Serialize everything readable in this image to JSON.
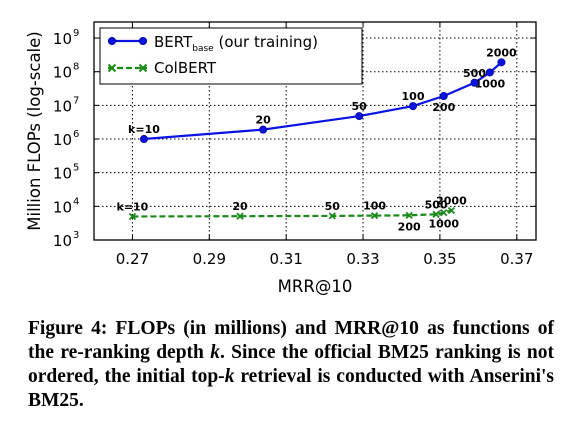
{
  "chart_data": {
    "type": "line",
    "xlabel": "MRR@10",
    "ylabel": "Million FLOPs (log-scale)",
    "xlim": [
      0.26,
      0.375
    ],
    "ylim": [
      1000,
      3000000000
    ],
    "y_scale": "log",
    "grid": true,
    "legend_placement": "top-left",
    "x_ticks": [
      0.27,
      0.29,
      0.31,
      0.33,
      0.35,
      0.37
    ],
    "x_tick_labels": [
      "0.27",
      "0.29",
      "0.31",
      "0.33",
      "0.35",
      "0.37"
    ],
    "y_ticks": [
      1000,
      10000,
      100000,
      1000000,
      10000000,
      100000000,
      1000000000
    ],
    "y_tick_labels": [
      {
        "base": "10",
        "exp": "3"
      },
      {
        "base": "10",
        "exp": "4"
      },
      {
        "base": "10",
        "exp": "5"
      },
      {
        "base": "10",
        "exp": "6"
      },
      {
        "base": "10",
        "exp": "7"
      },
      {
        "base": "10",
        "exp": "8"
      },
      {
        "base": "10",
        "exp": "9"
      }
    ],
    "series": [
      {
        "name": "BERT",
        "name_sub": "base",
        "name_suffix": " (our training)",
        "color": "#0a14e0",
        "marker": "circle",
        "points": [
          {
            "k": "k=10",
            "x": 0.273,
            "y": 1000000,
            "label_pos": "above"
          },
          {
            "k": "20",
            "x": 0.304,
            "y": 1900000,
            "label_pos": "above"
          },
          {
            "k": "50",
            "x": 0.329,
            "y": 4800000,
            "label_pos": "above"
          },
          {
            "k": "100",
            "x": 0.343,
            "y": 9500000,
            "label_pos": "above"
          },
          {
            "k": "200",
            "x": 0.351,
            "y": 19000000,
            "label_pos": "below"
          },
          {
            "k": "500",
            "x": 0.359,
            "y": 47000000,
            "label_pos": "above"
          },
          {
            "k": "1000",
            "x": 0.363,
            "y": 95000000,
            "label_pos": "below"
          },
          {
            "k": "2000",
            "x": 0.366,
            "y": 190000000,
            "label_pos": "above"
          }
        ]
      },
      {
        "name": "ColBERT",
        "color": "#1a8a1a",
        "marker": "x",
        "points": [
          {
            "k": "k=10",
            "x": 0.27,
            "y": 5000,
            "label_pos": "above"
          },
          {
            "k": "20",
            "x": 0.298,
            "y": 5100,
            "label_pos": "above"
          },
          {
            "k": "50",
            "x": 0.322,
            "y": 5200,
            "label_pos": "above"
          },
          {
            "k": "100",
            "x": 0.333,
            "y": 5300,
            "label_pos": "above"
          },
          {
            "k": "200",
            "x": 0.342,
            "y": 5400,
            "label_pos": "below"
          },
          {
            "k": "500",
            "x": 0.349,
            "y": 5800,
            "label_pos": "above"
          },
          {
            "k": "1000",
            "x": 0.351,
            "y": 6500,
            "label_pos": "below"
          },
          {
            "k": "2000",
            "x": 0.353,
            "y": 7500,
            "label_pos": "above"
          }
        ]
      }
    ]
  },
  "caption": {
    "prefix": "Figure 4:  FLOPs (in millions) and MRR@10 as functions of the re-ranking depth ",
    "k1": "k",
    "middle": ".  Since the official BM25 ranking is not ordered, the initial top-",
    "k2": "k",
    "suffix": " retrieval is conducted with Anserini's BM25."
  }
}
